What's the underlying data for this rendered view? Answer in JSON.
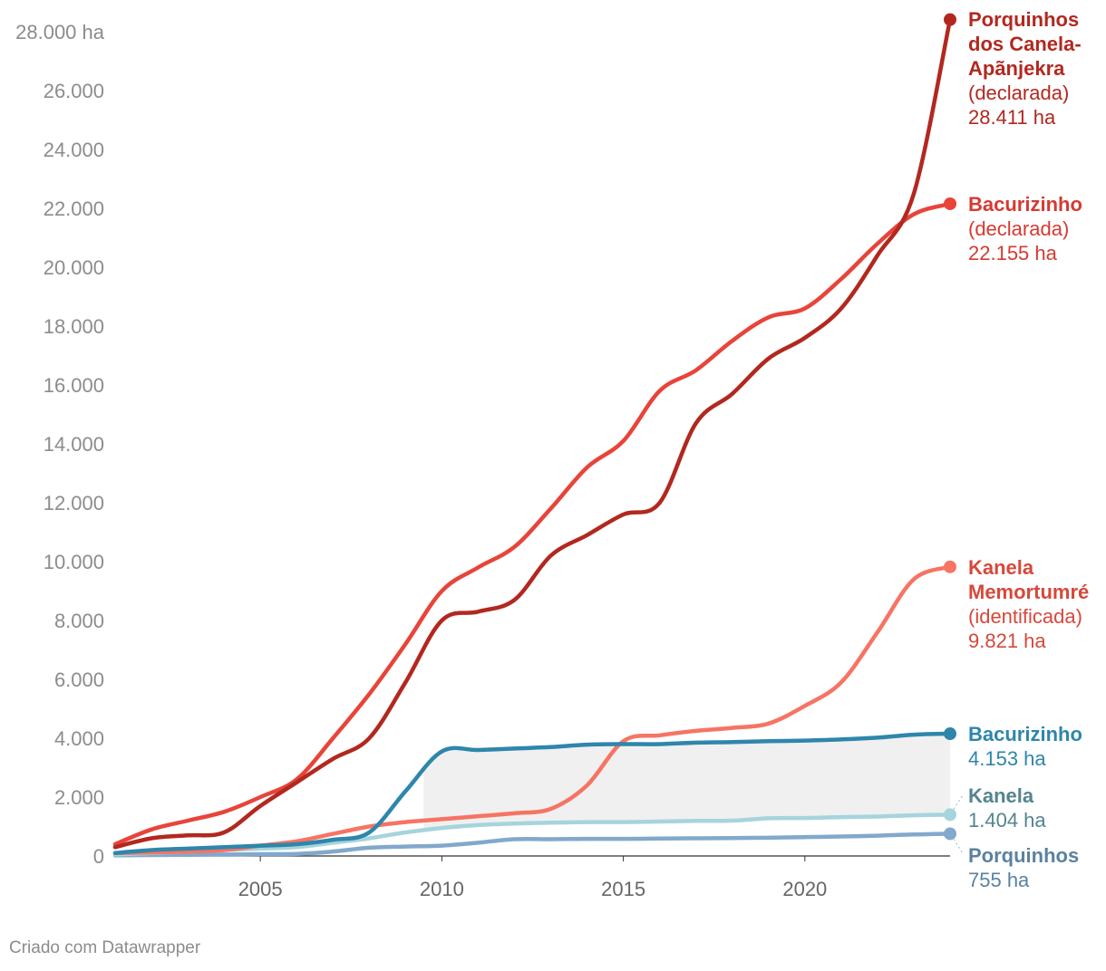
{
  "chart_data": {
    "type": "line",
    "xlim": [
      2001,
      2024
    ],
    "ylim": [
      0,
      28000
    ],
    "x_ticks": [
      2005,
      2010,
      2015,
      2020
    ],
    "y_ticks": [
      {
        "value": 0,
        "label": "0"
      },
      {
        "value": 2000,
        "label": "2.000"
      },
      {
        "value": 4000,
        "label": "4.000"
      },
      {
        "value": 6000,
        "label": "6.000"
      },
      {
        "value": 8000,
        "label": "8.000"
      },
      {
        "value": 10000,
        "label": "10.000"
      },
      {
        "value": 12000,
        "label": "12.000"
      },
      {
        "value": 14000,
        "label": "14.000"
      },
      {
        "value": 16000,
        "label": "16.000"
      },
      {
        "value": 18000,
        "label": "18.000"
      },
      {
        "value": 20000,
        "label": "20.000"
      },
      {
        "value": 22000,
        "label": "22.000"
      },
      {
        "value": 24000,
        "label": "24.000"
      },
      {
        "value": 26000,
        "label": "26.000"
      },
      {
        "value": 28000,
        "label": "28.000 ha"
      }
    ],
    "series": [
      {
        "name": "Porquinhos dos Canela-Apãnjekra",
        "name_lines": [
          "Porquinhos",
          "dos Canela-",
          "Apãnjekra"
        ],
        "status": "(declarada)",
        "value_label": "28.411 ha",
        "color": "#b2281f",
        "x": [
          2001,
          2002,
          2003,
          2004,
          2005,
          2006,
          2007,
          2008,
          2009,
          2010,
          2011,
          2012,
          2013,
          2014,
          2015,
          2016,
          2017,
          2018,
          2019,
          2020,
          2021,
          2022,
          2023,
          2024
        ],
        "values": [
          300,
          600,
          700,
          800,
          1700,
          2500,
          3300,
          4000,
          5900,
          8000,
          8300,
          8700,
          10200,
          10900,
          11600,
          12000,
          14700,
          15700,
          16900,
          17600,
          18600,
          20400,
          22500,
          28411
        ]
      },
      {
        "name": "Bacurizinho",
        "name_lines": [
          "Bacurizinho"
        ],
        "status": "(declarada)",
        "value_label": "22.155 ha",
        "color": "#e8443a",
        "x": [
          2001,
          2002,
          2003,
          2004,
          2005,
          2006,
          2007,
          2008,
          2009,
          2010,
          2011,
          2012,
          2013,
          2014,
          2015,
          2016,
          2017,
          2018,
          2019,
          2020,
          2021,
          2022,
          2023,
          2024
        ],
        "values": [
          400,
          900,
          1200,
          1500,
          2000,
          2600,
          4000,
          5500,
          7200,
          9000,
          9800,
          10500,
          11800,
          13200,
          14100,
          15800,
          16500,
          17500,
          18300,
          18600,
          19600,
          20800,
          21800,
          22155
        ]
      },
      {
        "name": "Kanela Memortumré",
        "name_lines": [
          "Kanela",
          "Memortumré"
        ],
        "status": "(identificada)",
        "value_label": "9.821 ha",
        "color": "#f67464",
        "x": [
          2001,
          2002,
          2003,
          2004,
          2005,
          2006,
          2007,
          2008,
          2009,
          2010,
          2011,
          2012,
          2013,
          2014,
          2015,
          2016,
          2017,
          2018,
          2019,
          2020,
          2021,
          2022,
          2023,
          2024
        ],
        "values": [
          100,
          120,
          150,
          200,
          350,
          500,
          750,
          1000,
          1150,
          1250,
          1350,
          1450,
          1600,
          2400,
          3900,
          4100,
          4250,
          4350,
          4500,
          5100,
          5900,
          7600,
          9400,
          9821
        ]
      },
      {
        "name": "Bacurizinho",
        "name_lines": [
          "Bacurizinho"
        ],
        "status": "",
        "value_label": "4.153 ha",
        "color": "#2e86ab",
        "x": [
          2001,
          2002,
          2003,
          2004,
          2005,
          2006,
          2007,
          2008,
          2009,
          2010,
          2011,
          2012,
          2013,
          2014,
          2015,
          2016,
          2017,
          2018,
          2019,
          2020,
          2021,
          2022,
          2023,
          2024
        ],
        "values": [
          100,
          200,
          250,
          300,
          350,
          400,
          550,
          800,
          2200,
          3550,
          3600,
          3650,
          3700,
          3780,
          3800,
          3800,
          3850,
          3870,
          3900,
          3920,
          3960,
          4020,
          4120,
          4153
        ]
      },
      {
        "name": "Kanela",
        "name_lines": [
          "Kanela"
        ],
        "status": "",
        "value_label": "1.404 ha",
        "color": "#a6d4dc",
        "x": [
          2001,
          2002,
          2003,
          2004,
          2005,
          2006,
          2007,
          2008,
          2009,
          2010,
          2011,
          2012,
          2013,
          2014,
          2015,
          2016,
          2017,
          2018,
          2019,
          2020,
          2021,
          2022,
          2023,
          2024
        ],
        "values": [
          50,
          100,
          150,
          200,
          250,
          300,
          450,
          600,
          800,
          950,
          1050,
          1100,
          1130,
          1150,
          1150,
          1170,
          1190,
          1200,
          1280,
          1290,
          1320,
          1340,
          1380,
          1404
        ]
      },
      {
        "name": "Porquinhos",
        "name_lines": [
          "Porquinhos"
        ],
        "status": "",
        "value_label": "755 ha",
        "color": "#82a8cc",
        "x": [
          2001,
          2002,
          2003,
          2004,
          2005,
          2006,
          2007,
          2008,
          2009,
          2010,
          2011,
          2012,
          2013,
          2014,
          2015,
          2016,
          2017,
          2018,
          2019,
          2020,
          2021,
          2022,
          2023,
          2024
        ],
        "values": [
          20,
          30,
          40,
          50,
          60,
          70,
          150,
          280,
          320,
          350,
          450,
          570,
          570,
          580,
          580,
          590,
          600,
          610,
          620,
          640,
          660,
          690,
          730,
          755
        ]
      }
    ],
    "shaded_range": {
      "from_series": 4,
      "to_series": 3,
      "x_from": 2009.5,
      "color": "#f0f0f0"
    },
    "label_colors": [
      "#b2281f",
      "#d63a32",
      "#d6483b",
      "#2e86ab",
      "#54848f",
      "#5a82a0"
    ]
  },
  "credit": "Criado com Datawrapper"
}
